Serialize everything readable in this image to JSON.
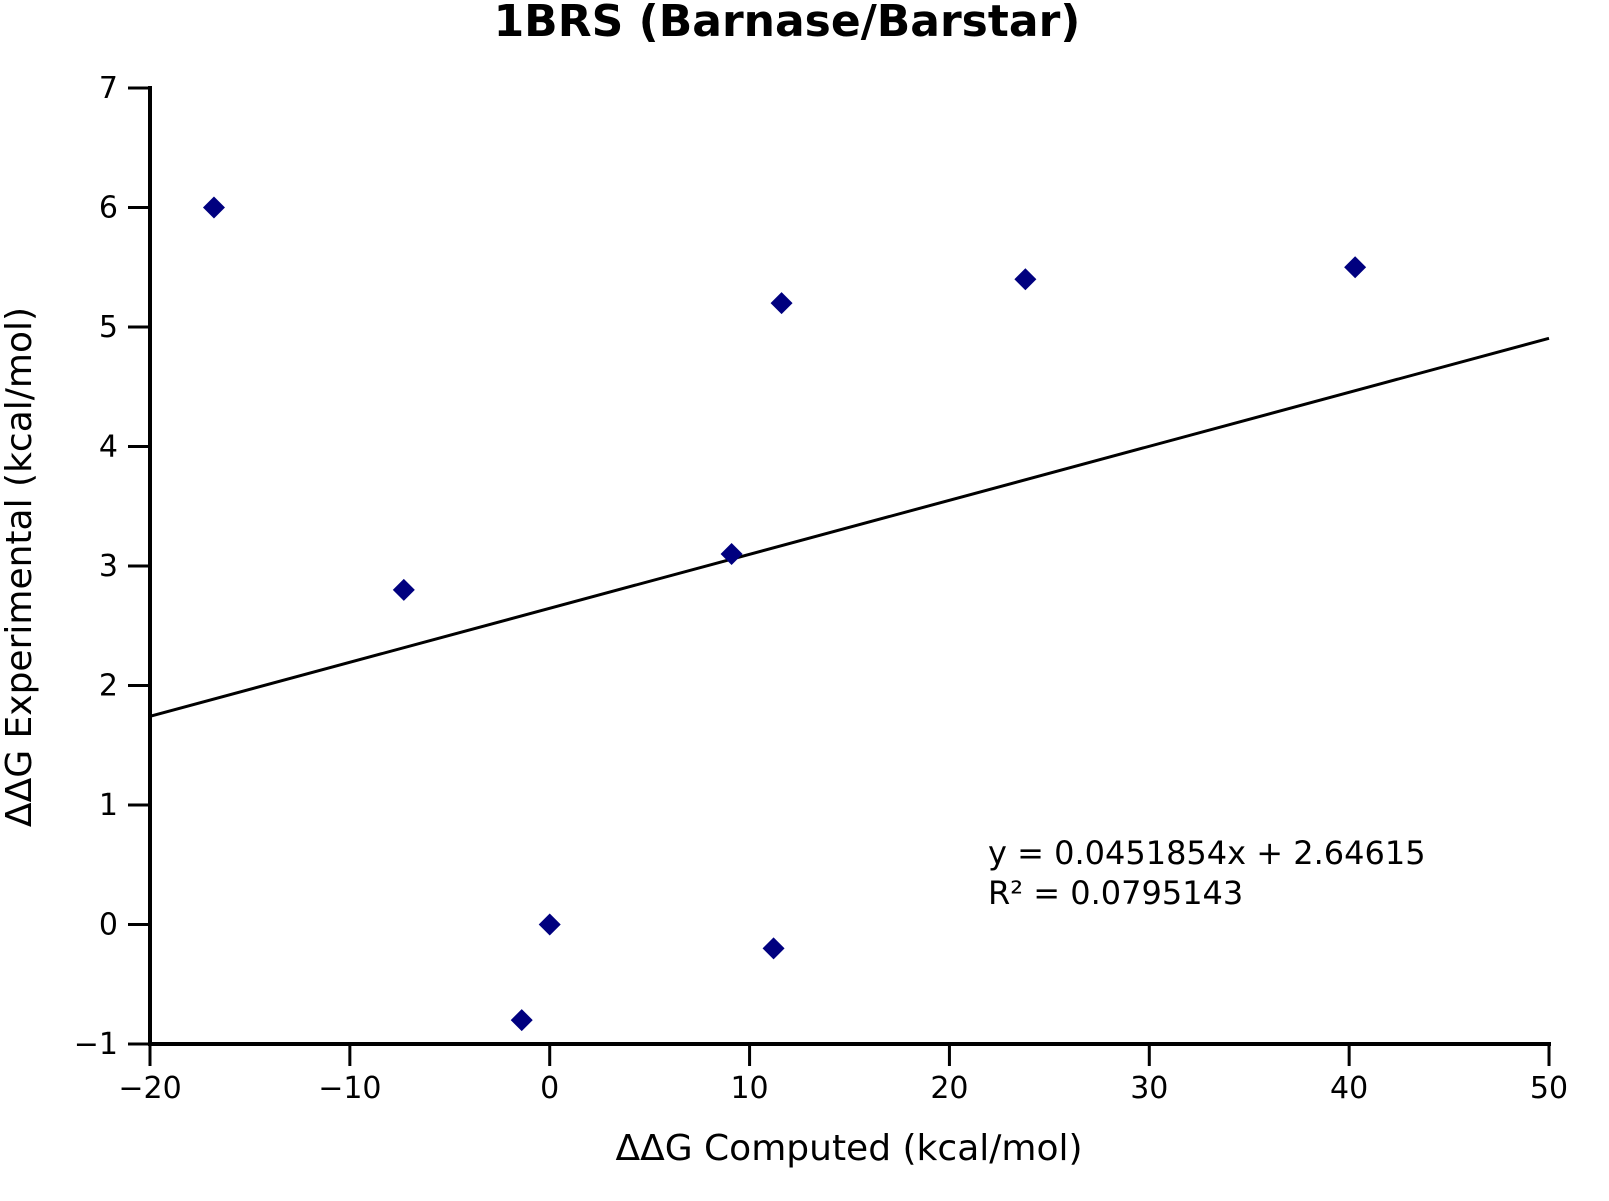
{
  "chart_data": {
    "type": "scatter",
    "title": "1BRS (Barnase/Barstar)",
    "xlabel": "ΔΔG Computed (kcal/mol)",
    "ylabel": "ΔΔG Experimental (kcal/mol)",
    "xlim": [
      -20,
      50
    ],
    "ylim": [
      -1,
      7
    ],
    "xticks": [
      -20,
      -10,
      0,
      10,
      20,
      30,
      40,
      50
    ],
    "yticks": [
      -1,
      0,
      1,
      2,
      3,
      4,
      5,
      6,
      7
    ],
    "xtick_labels": [
      "−20",
      "−10",
      "0",
      "10",
      "20",
      "30",
      "40",
      "50"
    ],
    "ytick_labels": [
      "−1",
      "0",
      "1",
      "2",
      "3",
      "4",
      "5",
      "6",
      "7"
    ],
    "grid": false,
    "marker": "diamond",
    "marker_color": "#00007f",
    "line_color": "#000000",
    "points": [
      {
        "x": -16.8,
        "y": 6.0
      },
      {
        "x": -7.3,
        "y": 2.8
      },
      {
        "x": -1.4,
        "y": -0.8
      },
      {
        "x": 0.0,
        "y": 0.0
      },
      {
        "x": 9.1,
        "y": 3.1
      },
      {
        "x": 11.2,
        "y": -0.2
      },
      {
        "x": 11.6,
        "y": 5.2
      },
      {
        "x": 23.8,
        "y": 5.4
      },
      {
        "x": 40.3,
        "y": 5.5
      }
    ],
    "trendline": {
      "slope": 0.0451854,
      "intercept": 2.64615
    },
    "annotations": [
      "y = 0.0451854x + 2.64615",
      "R² = 0.0795143"
    ]
  }
}
